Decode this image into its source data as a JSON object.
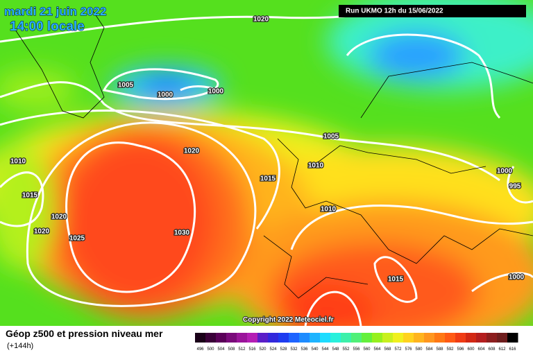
{
  "header": {
    "date": "mardi 21 juin 2022",
    "time": "14:00 locale",
    "run": "Run UKMO 12h du 15/06/2022"
  },
  "isobar_labels": [
    "1020",
    "1005",
    "1000",
    "1000",
    "1005",
    "1020",
    "1010",
    "1010",
    "1015",
    "1015",
    "1000",
    "995",
    "1020",
    "1010",
    "1020",
    "1025",
    "1030",
    "1015",
    "1000"
  ],
  "copyright": "Copyright 2022 Meteociel.fr",
  "legend": {
    "title": "Géop z500 et pression niveau mer",
    "subtitle": "(+144h)",
    "labels": [
      "496",
      "500",
      "504",
      "508",
      "512",
      "516",
      "520",
      "524",
      "528",
      "532",
      "536",
      "540",
      "544",
      "548",
      "552",
      "556",
      "560",
      "564",
      "568",
      "572",
      "576",
      "580",
      "584",
      "588",
      "592",
      "596",
      "600",
      "604",
      "608",
      "612",
      "616"
    ],
    "colors": [
      "#1a0018",
      "#3a0038",
      "#5a0058",
      "#7a0a7a",
      "#9a149a",
      "#b41eb4",
      "#5a1ec8",
      "#3228dc",
      "#1e3cf0",
      "#1e64ff",
      "#1e8cff",
      "#1eb4ff",
      "#1edcff",
      "#28f0dc",
      "#3cf0aa",
      "#50f078",
      "#64f03c",
      "#96f01e",
      "#c8f01e",
      "#f0f01e",
      "#ffd21e",
      "#ffb41e",
      "#ff961e",
      "#ff7814",
      "#ff5a14",
      "#f03c14",
      "#d22814",
      "#b41e1e",
      "#8c1e1e",
      "#6e1e1e",
      "#000000"
    ]
  }
}
